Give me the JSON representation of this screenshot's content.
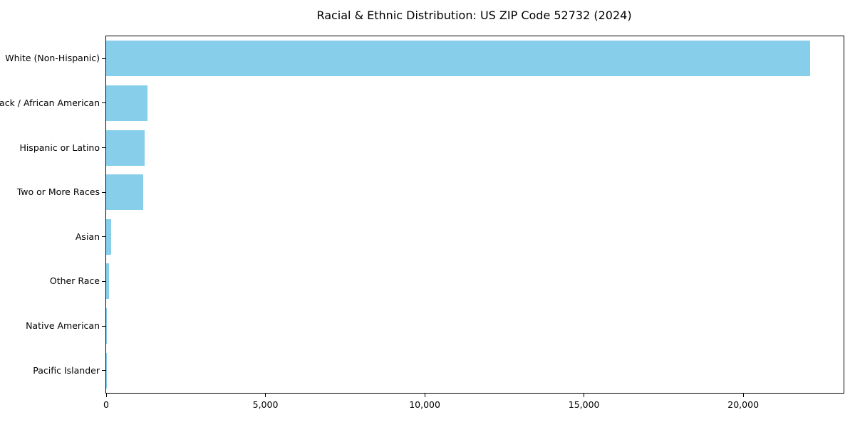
{
  "title": "Racial & Ethnic Distribution: US ZIP Code 52732 (2024)",
  "chart_data": {
    "type": "bar",
    "orientation": "horizontal",
    "title": "Racial & Ethnic Distribution: US ZIP Code 52732 (2024)",
    "xlabel": "",
    "ylabel": "",
    "categories": [
      "White (Non-Hispanic)",
      "Black / African American",
      "Hispanic or Latino",
      "Two or More Races",
      "Asian",
      "Other Race",
      "Native American",
      "Pacific Islander"
    ],
    "values": [
      22100,
      1300,
      1200,
      1170,
      150,
      85,
      30,
      8
    ],
    "xlim": [
      0,
      23150
    ],
    "x_ticks": [
      0,
      5000,
      10000,
      15000,
      20000
    ],
    "x_tick_labels": [
      "0",
      "5,000",
      "10,000",
      "15,000",
      "20,000"
    ],
    "grid": false,
    "legend": null,
    "bar_color": "#87CEEB"
  },
  "colors": {
    "bar": "#87CEEB",
    "axis": "#000000",
    "text": "#000000",
    "background": "#FFFFFF"
  }
}
